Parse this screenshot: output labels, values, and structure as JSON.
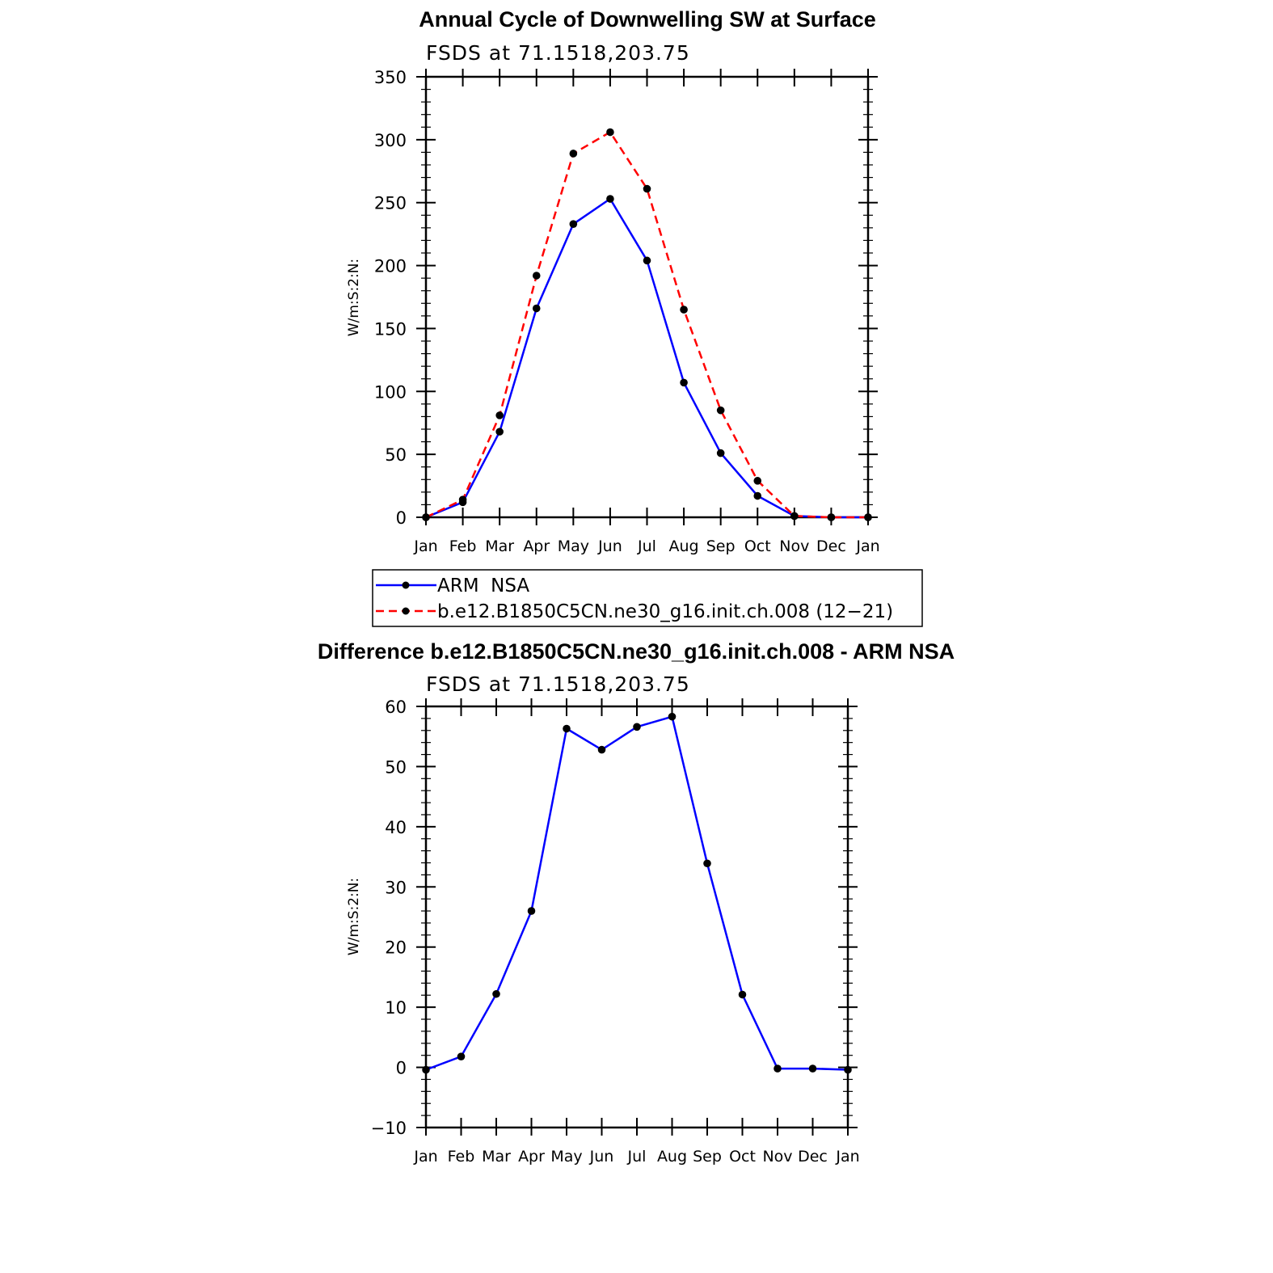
{
  "chart_data": [
    {
      "type": "line",
      "title": "Annual Cycle of Downwelling SW at Surface",
      "subtitle": "FSDS at 71.1518,203.75",
      "ylabel": "W/m:S:2:N:",
      "xlabel": "",
      "categories": [
        "Jan",
        "Feb",
        "Mar",
        "Apr",
        "May",
        "Jun",
        "Jul",
        "Aug",
        "Sep",
        "Oct",
        "Nov",
        "Dec",
        "Jan"
      ],
      "ylim": [
        0,
        350
      ],
      "yticks": [
        0,
        50,
        100,
        150,
        200,
        250,
        300,
        350
      ],
      "series": [
        {
          "name": "ARM  NSA",
          "color": "#0000ff",
          "dash": "solid",
          "values": [
            0,
            12,
            68,
            166,
            233,
            253,
            204,
            107,
            51,
            17,
            1,
            0,
            0
          ]
        },
        {
          "name": "b.e12.B1850C5CN.ne30_g16.init.ch.008 (12−21)",
          "color": "#ff0000",
          "dash": "dashed",
          "values": [
            0,
            14,
            81,
            192,
            289,
            306,
            261,
            165,
            85,
            29,
            1,
            0,
            0
          ]
        }
      ],
      "legend": "below"
    },
    {
      "type": "line",
      "title": "Difference b.e12.B1850C5CN.ne30_g16.init.ch.008 - ARM NSA",
      "subtitle": "FSDS at 71.1518,203.75",
      "ylabel": "W/m:S:2:N:",
      "xlabel": "",
      "categories": [
        "Jan",
        "Feb",
        "Mar",
        "Apr",
        "May",
        "Jun",
        "Jul",
        "Aug",
        "Sep",
        "Oct",
        "Nov",
        "Dec",
        "Jan"
      ],
      "ylim": [
        -10,
        60
      ],
      "yticks": [
        -10,
        0,
        10,
        20,
        30,
        40,
        50,
        60
      ],
      "series": [
        {
          "name": "",
          "color": "#0000ff",
          "dash": "solid",
          "values": [
            -0.4,
            1.8,
            12.2,
            26,
            56.3,
            52.8,
            56.6,
            58.3,
            33.9,
            12.1,
            -0.2,
            -0.2,
            -0.4
          ]
        }
      ]
    }
  ]
}
